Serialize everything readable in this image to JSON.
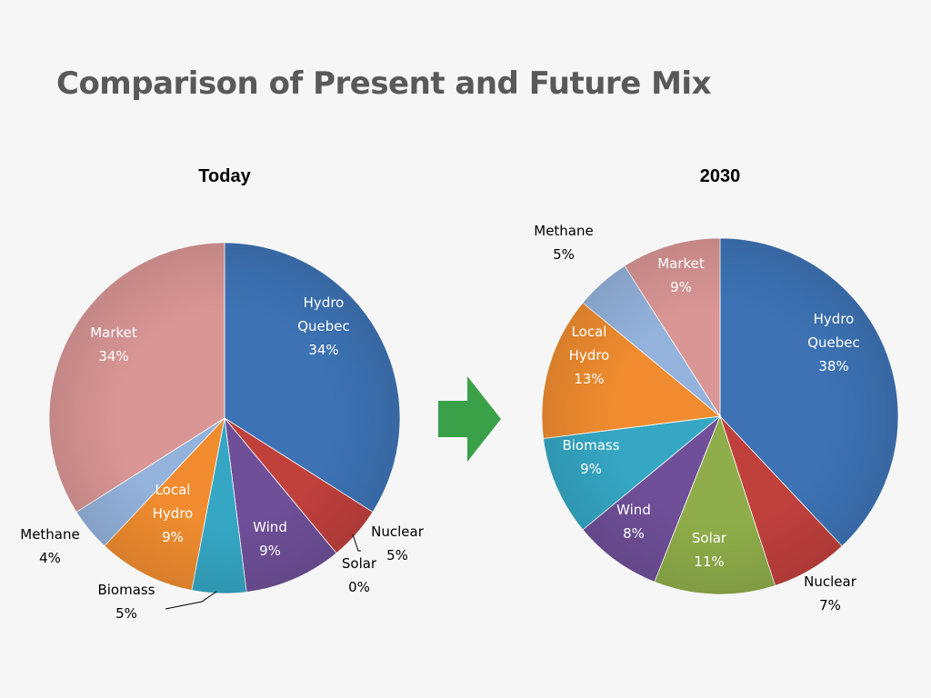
{
  "slide_title": "Comparison of Present and Future Mix",
  "arrow_color": "#3aa149",
  "chart_data": [
    {
      "type": "pie",
      "title": "Today",
      "categories": [
        "Hydro Quebec",
        "Nuclear",
        "Solar",
        "Wind",
        "Biomass",
        "Local Hydro",
        "Methane",
        "Market"
      ],
      "values": [
        34,
        5,
        0,
        9,
        5,
        9,
        4,
        34
      ],
      "value_labels": [
        "34%",
        "5%",
        "0%",
        "9%",
        "5%",
        "9%",
        "4%",
        "34%"
      ],
      "colors": [
        "#3d73b5",
        "#c0403c",
        "#8fad4a",
        "#6f4f98",
        "#35a7c4",
        "#f08c2f",
        "#93b2dc",
        "#d99695"
      ],
      "legend": "none"
    },
    {
      "type": "pie",
      "title": "2030",
      "categories": [
        "Hydro Quebec",
        "Nuclear",
        "Solar",
        "Wind",
        "Biomass",
        "Local Hydro",
        "Methane",
        "Market"
      ],
      "values": [
        38,
        7,
        11,
        8,
        9,
        13,
        5,
        9
      ],
      "value_labels": [
        "38%",
        "7%",
        "11%",
        "8%",
        "9%",
        "13%",
        "5%",
        "9%"
      ],
      "colors": [
        "#3d73b5",
        "#c0403c",
        "#8fad4a",
        "#6f4f98",
        "#35a7c4",
        "#f08c2f",
        "#93b2dc",
        "#d99695"
      ],
      "legend": "none"
    }
  ]
}
